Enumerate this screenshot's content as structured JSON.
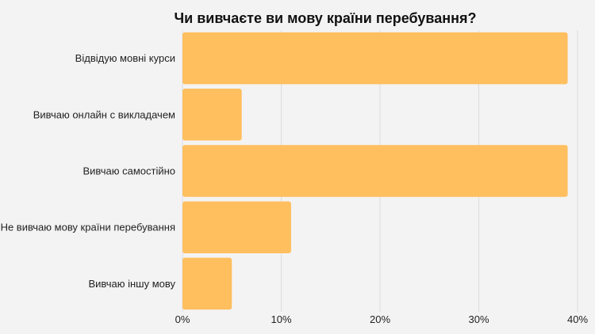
{
  "chart_data": {
    "type": "bar",
    "orientation": "horizontal",
    "title": "Чи вивчаєте ви мову країни перебування?",
    "categories": [
      "Відвідую мовні курси",
      "Вивчаю онлайн с викладачем",
      "Вивчаю самостійно",
      "Не вивчаю мову країни перебування",
      "Вивчаю іншу мову"
    ],
    "values": [
      39,
      6,
      39,
      11,
      5
    ],
    "xlim": [
      0,
      40
    ],
    "x_ticks": [
      "0%",
      "10%",
      "20%",
      "30%",
      "40%"
    ],
    "value_unit": "%",
    "grid": "vertical",
    "legend": "none",
    "bar_color": "#ffbf5e",
    "background_color": "#f4f3f3",
    "grid_color": "#dcdcdc"
  }
}
